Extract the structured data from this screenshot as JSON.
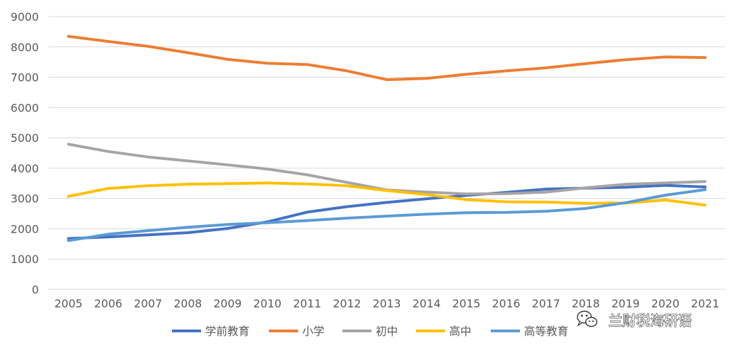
{
  "chart_data": {
    "type": "line",
    "x": [
      "2005",
      "2006",
      "2007",
      "2008",
      "2009",
      "2010",
      "2011",
      "2012",
      "2013",
      "2014",
      "2015",
      "2016",
      "2017",
      "2018",
      "2019",
      "2020",
      "2021"
    ],
    "ylim": [
      0,
      9000
    ],
    "yticks": [
      0,
      1000,
      2000,
      3000,
      4000,
      5000,
      6000,
      7000,
      8000,
      9000
    ],
    "grid": true,
    "legend": "bottom",
    "series": [
      {
        "name": "学前教育",
        "color": "#4472c4",
        "values": [
          1680,
          1730,
          1800,
          1870,
          2010,
          2230,
          2550,
          2730,
          2870,
          2990,
          3100,
          3200,
          3310,
          3340,
          3370,
          3430,
          3380
        ]
      },
      {
        "name": "小学",
        "color": "#ed7d31",
        "values": [
          8350,
          8180,
          8020,
          7810,
          7590,
          7460,
          7420,
          7210,
          6920,
          6960,
          7100,
          7210,
          7310,
          7450,
          7580,
          7670,
          7650
        ]
      },
      {
        "name": "初中",
        "color": "#a5a5a5",
        "values": [
          4790,
          4550,
          4370,
          4240,
          4110,
          3970,
          3780,
          3530,
          3280,
          3210,
          3150,
          3160,
          3210,
          3350,
          3470,
          3510,
          3560
        ]
      },
      {
        "name": "高中",
        "color": "#ffc000",
        "values": [
          3070,
          3330,
          3420,
          3470,
          3490,
          3510,
          3480,
          3420,
          3260,
          3130,
          2960,
          2890,
          2880,
          2840,
          2850,
          2950,
          2780
        ]
      },
      {
        "name": "高等教育",
        "color": "#5b9bd5",
        "values": [
          1610,
          1820,
          1940,
          2050,
          2140,
          2200,
          2270,
          2350,
          2420,
          2480,
          2530,
          2540,
          2580,
          2670,
          2860,
          3110,
          3290
        ]
      }
    ]
  },
  "watermark": {
    "text": "兰财税海研语",
    "icon": "wechat-icon"
  }
}
